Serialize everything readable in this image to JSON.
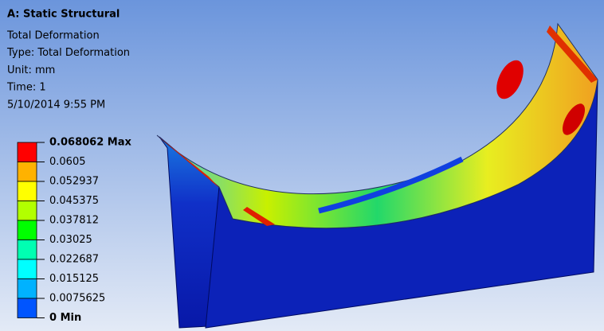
{
  "header": {
    "title": "A: Static Structural",
    "lines": [
      "Total Deformation",
      "Type: Total Deformation",
      "Unit: mm",
      "Time: 1",
      "5/10/2014 9:55 PM"
    ]
  },
  "legend": {
    "labels": [
      "0.068062 Max",
      "0.0605",
      "0.052937",
      "0.045375",
      "0.037812",
      "0.03025",
      "0.022687",
      "0.015125",
      "0.0075625",
      "0 Min"
    ],
    "colors": [
      "#ff0000",
      "#ffb200",
      "#ffff00",
      "#b2ff00",
      "#00ff00",
      "#00ffb2",
      "#00ffff",
      "#00b2ff",
      "#0055ff"
    ]
  }
}
